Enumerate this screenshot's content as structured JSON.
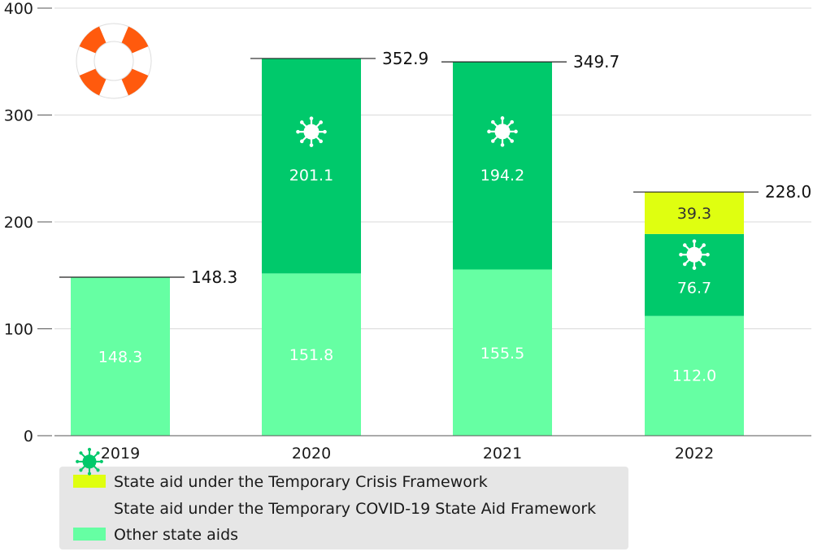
{
  "chart_data": {
    "type": "bar",
    "stacked": true,
    "categories": [
      "2019",
      "2020",
      "2021",
      "2022"
    ],
    "series": [
      {
        "key": "other",
        "name": "Other state aids",
        "color": "#66ffa3",
        "label_color": "#ffffff",
        "values": [
          148.3,
          151.8,
          155.5,
          112.0
        ]
      },
      {
        "key": "covid",
        "name": "State aid under the Temporary COVID-19 State Aid Framework",
        "color": "#00c96b",
        "label_color": "#ffffff",
        "values": [
          null,
          201.1,
          194.2,
          76.7
        ]
      },
      {
        "key": "crisis",
        "name": "State aid under the Temporary Crisis Framework",
        "color": "#dfff10",
        "label_color": "#333333",
        "values": [
          null,
          null,
          null,
          39.3
        ]
      }
    ],
    "segment_labels": [
      {
        "other": "148.3"
      },
      {
        "other": "151.8",
        "covid": "201.1"
      },
      {
        "other": "155.5",
        "covid": "194.2"
      },
      {
        "other": "112.0",
        "covid": "76.7",
        "crisis": "39.3"
      }
    ],
    "totals": [
      148.3,
      352.9,
      349.7,
      228.0
    ],
    "total_labels": [
      "148.3",
      "352.9",
      "349.7",
      "228.0"
    ],
    "y_ticks": [
      0,
      100,
      200,
      300,
      400
    ],
    "y_tick_labels": [
      "0",
      "100",
      "200",
      "300",
      "400"
    ],
    "ylim": [
      0,
      400
    ],
    "grid": true,
    "legend_position": "bottom-left",
    "legend_order": [
      "crisis",
      "covid",
      "other"
    ],
    "title": "",
    "xlabel": "",
    "ylabel": ""
  },
  "icons": {
    "corner_icon": "lifebuoy-icon",
    "covid_marker": "virus-icon"
  },
  "colors": {
    "grid": "#d9d9d9",
    "axis": "#555555",
    "legend_bg": "#e6e6e6",
    "lifebuoy_orange": "#ff5a0d"
  }
}
